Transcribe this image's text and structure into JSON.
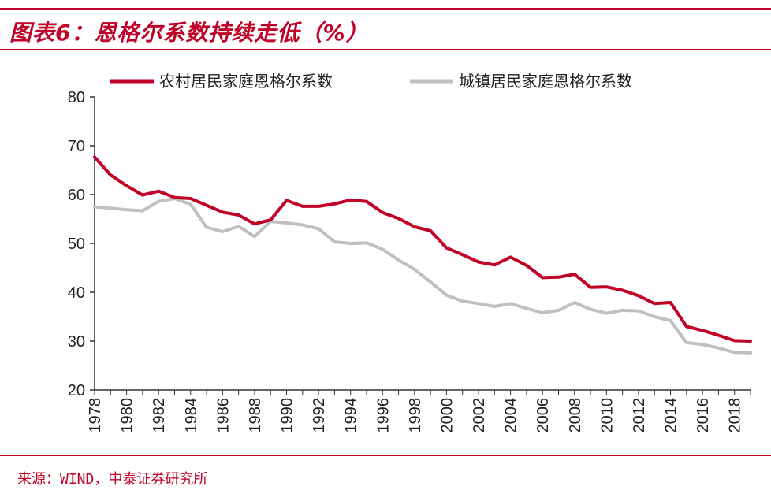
{
  "header": {
    "title": "图表6：恩格尔系数持续走低（%）"
  },
  "footer": {
    "source": "来源：WIND，中泰证券研究所"
  },
  "colors": {
    "accent": "#c00026",
    "rural": "#c00026",
    "urban": "#c0c0c0"
  },
  "chart_data": {
    "type": "line",
    "title": "图表6：恩格尔系数持续走低（%）",
    "xlabel": "",
    "ylabel": "",
    "ylim": [
      20,
      80
    ],
    "yticks": [
      20,
      30,
      40,
      50,
      60,
      70,
      80
    ],
    "xlim": [
      1978,
      2019
    ],
    "xticks": [
      1978,
      1980,
      1982,
      1984,
      1986,
      1988,
      1990,
      1992,
      1994,
      1996,
      1998,
      2000,
      2002,
      2004,
      2006,
      2008,
      2010,
      2012,
      2014,
      2016,
      2018
    ],
    "legend_position": "top",
    "grid": false,
    "x": [
      1978,
      1979,
      1980,
      1981,
      1982,
      1983,
      1984,
      1985,
      1986,
      1987,
      1988,
      1989,
      1990,
      1991,
      1992,
      1993,
      1994,
      1995,
      1996,
      1997,
      1998,
      1999,
      2000,
      2001,
      2002,
      2003,
      2004,
      2005,
      2006,
      2007,
      2008,
      2009,
      2010,
      2011,
      2012,
      2013,
      2014,
      2015,
      2016,
      2017,
      2018,
      2019
    ],
    "series": [
      {
        "name": "农村居民家庭恩格尔系数",
        "color": "#c00026",
        "values": [
          67.7,
          64.0,
          61.8,
          59.9,
          60.7,
          59.4,
          59.2,
          57.8,
          56.4,
          55.8,
          54.0,
          54.8,
          58.8,
          57.6,
          57.6,
          58.1,
          58.9,
          58.6,
          56.3,
          55.1,
          53.4,
          52.6,
          49.1,
          47.7,
          46.2,
          45.6,
          47.2,
          45.5,
          43.0,
          43.1,
          43.7,
          41.0,
          41.1,
          40.4,
          39.3,
          37.7,
          37.9,
          33.0,
          32.2,
          31.2,
          30.1,
          30.0
        ]
      },
      {
        "name": "城镇居民家庭恩格尔系数",
        "color": "#c0c0c0",
        "values": [
          57.5,
          57.2,
          56.9,
          56.7,
          58.6,
          59.2,
          58.0,
          53.3,
          52.4,
          53.5,
          51.4,
          54.5,
          54.2,
          53.8,
          53.0,
          50.3,
          50.0,
          50.1,
          48.8,
          46.6,
          44.7,
          42.1,
          39.4,
          38.2,
          37.7,
          37.1,
          37.7,
          36.7,
          35.8,
          36.3,
          37.9,
          36.5,
          35.7,
          36.3,
          36.2,
          35.0,
          34.2,
          29.7,
          29.3,
          28.6,
          27.7,
          27.6
        ]
      }
    ]
  }
}
